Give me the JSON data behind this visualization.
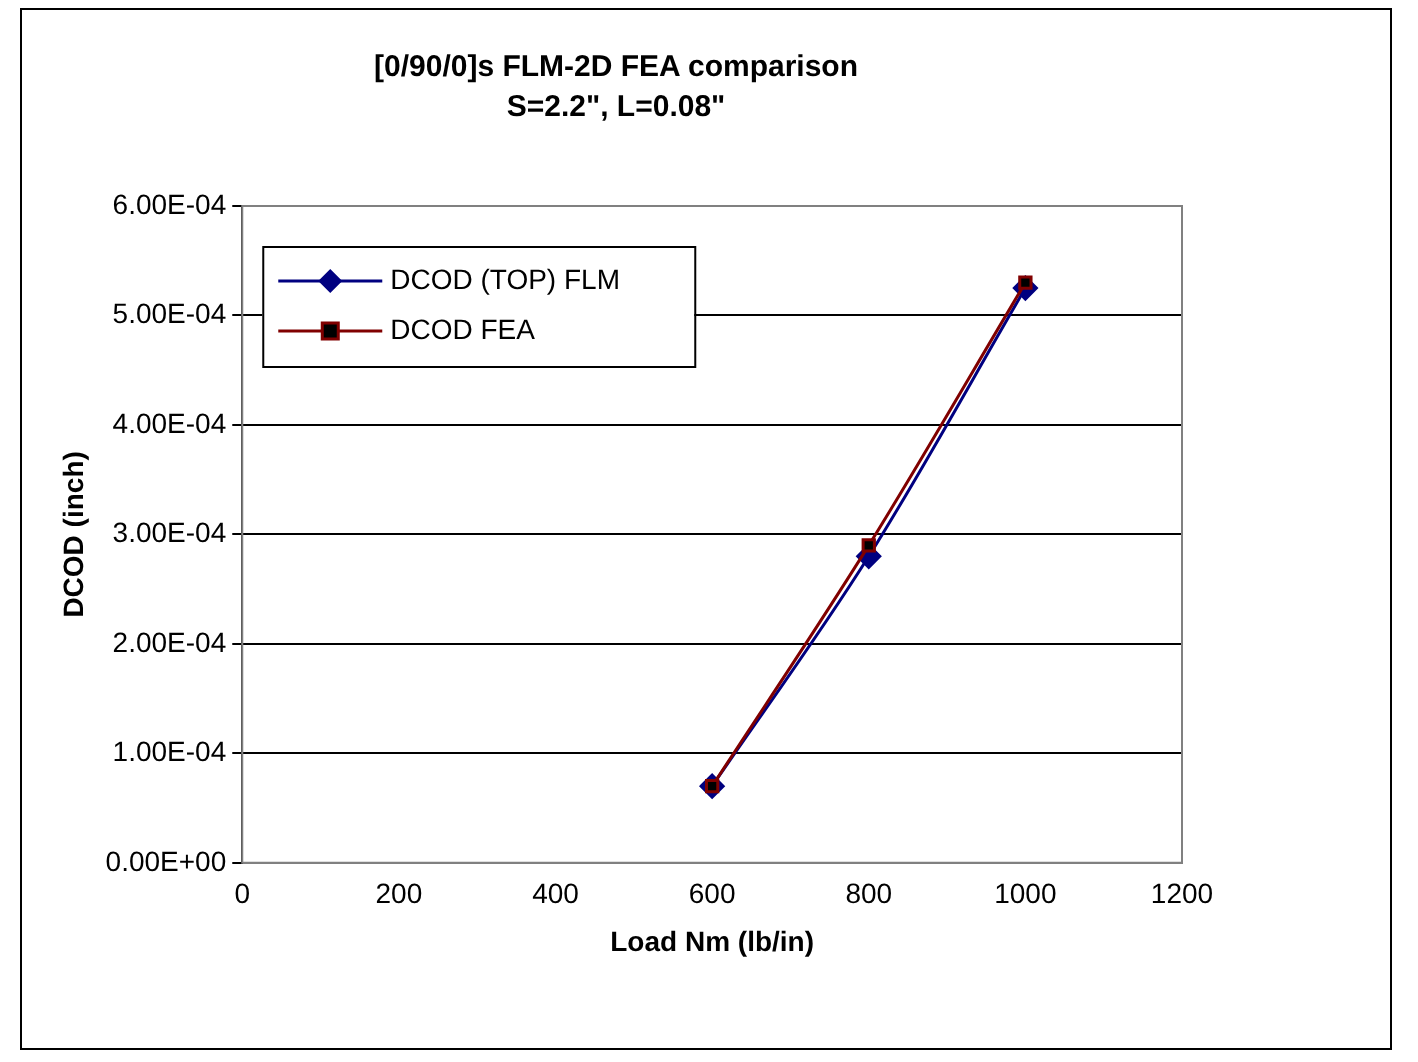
{
  "chart_data": {
    "type": "line",
    "title": "[0/90/0]s FLM-2D FEA comparison",
    "subtitle": "S=2.2\", L=0.08\"",
    "xlabel": "Load Nm (lb/in)",
    "ylabel": "DCOD (inch)",
    "x": [
      600,
      800,
      1000
    ],
    "series": [
      {
        "name": "DCOD (TOP) FLM",
        "color": "#000080",
        "marker": "diamond",
        "values": [
          7e-05,
          0.00028,
          0.000525
        ]
      },
      {
        "name": "DCOD FEA",
        "color": "#800000",
        "marker": "square",
        "values": [
          7e-05,
          0.00029,
          0.00053
        ]
      }
    ],
    "xlim": [
      0,
      1200
    ],
    "xticks": [
      0,
      200,
      400,
      600,
      800,
      1000,
      1200
    ],
    "ylim": [
      0,
      0.0006
    ],
    "yticks": [
      {
        "value": 0,
        "label": "0.00E+00"
      },
      {
        "value": 0.0001,
        "label": "1.00E-04"
      },
      {
        "value": 0.0002,
        "label": "2.00E-04"
      },
      {
        "value": 0.0003,
        "label": "3.00E-04"
      },
      {
        "value": 0.0004,
        "label": "4.00E-04"
      },
      {
        "value": 0.0005,
        "label": "5.00E-04"
      },
      {
        "value": 0.0006,
        "label": "6.00E-04"
      }
    ],
    "grid": "y",
    "legend": "top left"
  }
}
